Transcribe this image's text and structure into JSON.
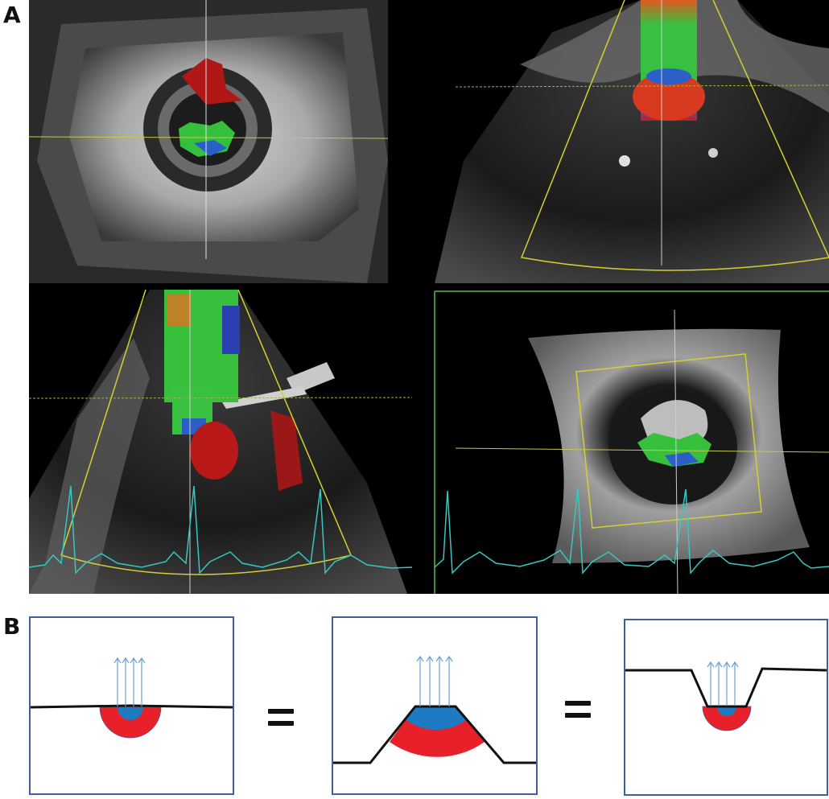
{
  "panels": {
    "a_label": "A",
    "b_label": "B"
  },
  "colors": {
    "echo_bg": "#000000",
    "crosshair": "#c8c84a",
    "sector_outline": "#d4d030",
    "ecg": "#35c8c0",
    "frame_green": "#5ab84a",
    "box_border": "#3f5f9a",
    "flow_blue": "#1f7ac4",
    "flow_red": "#e8202a",
    "arrow": "#6b9fd4"
  },
  "echo_views": [
    "3d-en-face-view",
    "long-axis-view",
    "bicommissural-view",
    "short-axis-view"
  ],
  "schematic": {
    "box1": "flat-orifice",
    "box2": "funnel-orifice",
    "box3": "recessed-orifice",
    "equals": "="
  }
}
